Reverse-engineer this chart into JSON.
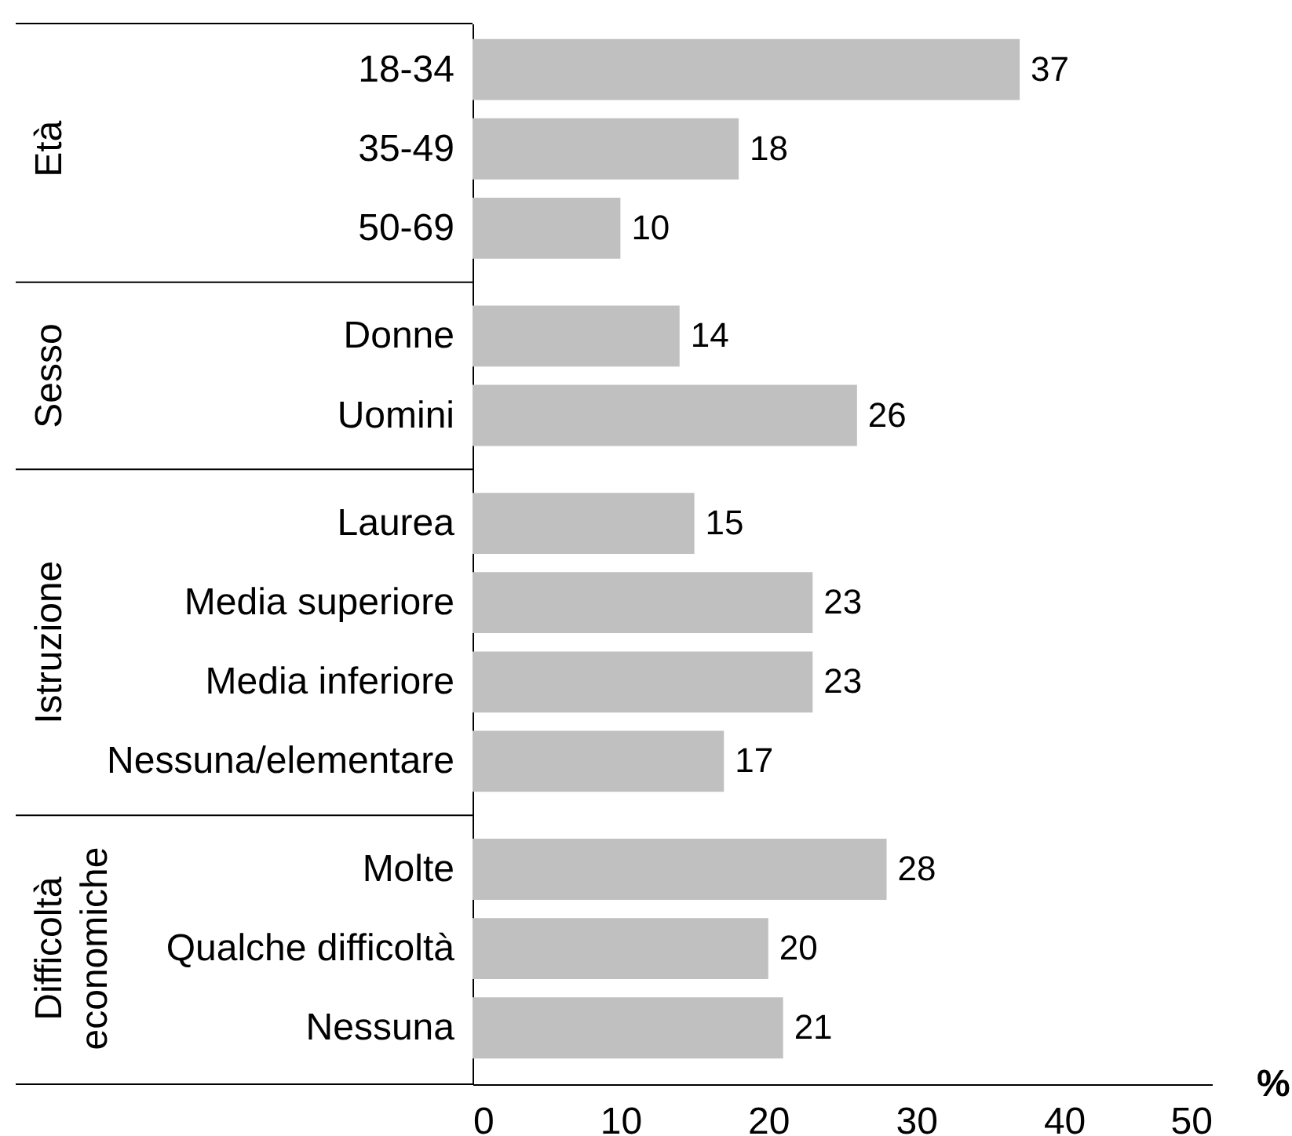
{
  "chart_data": {
    "type": "bar",
    "orientation": "horizontal",
    "categories": [
      "18-34",
      "35-49",
      "50-69",
      null,
      "Donne",
      "Uomini",
      null,
      "Laurea",
      "Media superiore",
      "Media inferiore",
      "Nessuna/elementare",
      null,
      "Molte",
      "Qualche difficoltà",
      "Nessuna"
    ],
    "values": [
      37,
      18,
      10,
      null,
      14,
      26,
      null,
      15,
      23,
      23,
      17,
      null,
      28,
      20,
      21
    ],
    "color": "#c0c0c0",
    "xlim": [
      0,
      50
    ],
    "xticks": [
      0,
      10,
      20,
      30,
      40,
      50
    ],
    "xlabel": "%",
    "data_labels": true,
    "annotations": [
      "Età",
      "Sesso",
      "Istruzione",
      "Difficoltà economiche"
    ]
  }
}
